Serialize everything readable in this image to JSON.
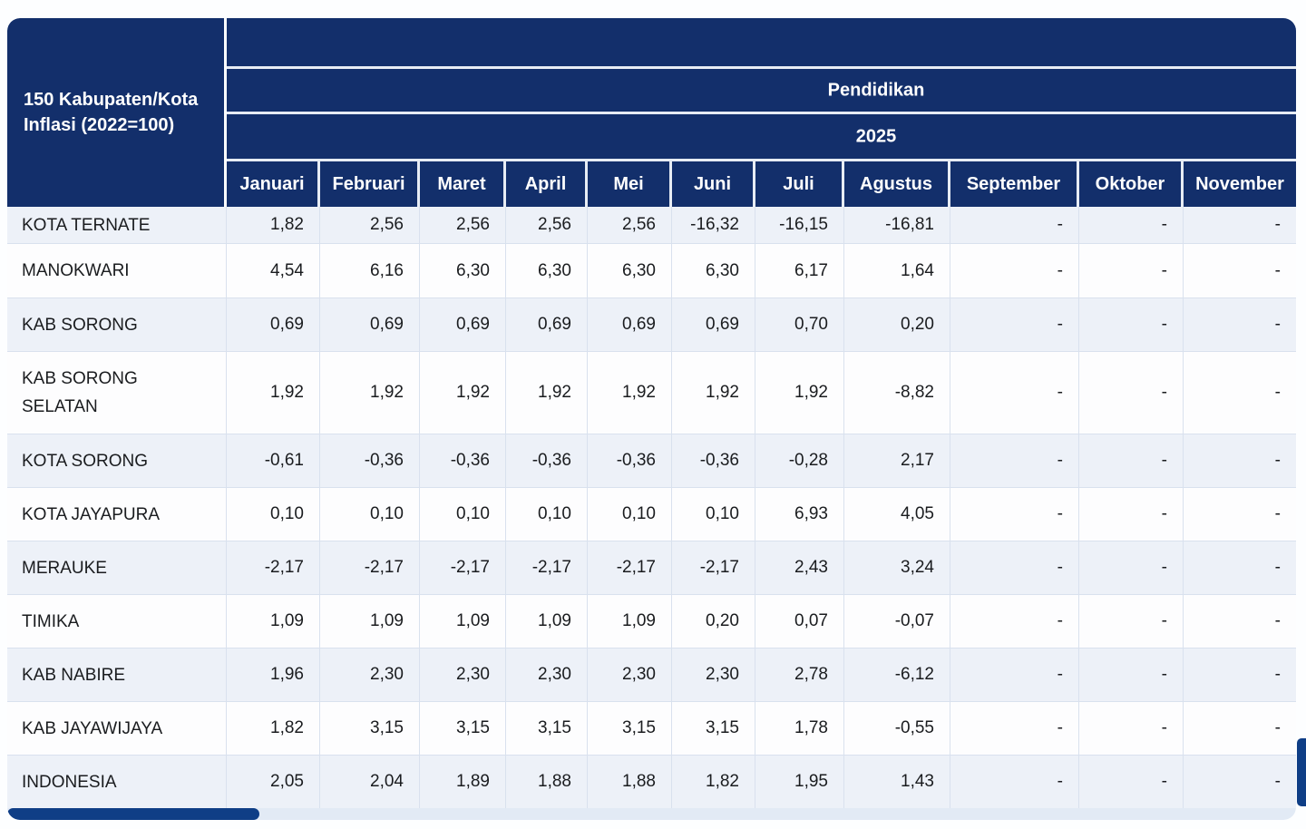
{
  "theme": {
    "header_navy": "#132F6B",
    "scrollbar_thumb": "#0F3E86",
    "alt_row_bg": "#EDF1F8",
    "white_row_bg": "#FDFDFE",
    "divider": "#D9E1EE",
    "header_text": "#FFFFFF",
    "body_text": "#1A1C1F"
  },
  "table": {
    "corner_title": "150 Kabupaten/Kota\nInflasi (2022=100)",
    "group_header": "Pendidikan",
    "year_header": "2025",
    "months": [
      "Januari",
      "Februari",
      "Maret",
      "April",
      "Mei",
      "Juni",
      "Juli",
      "Agustus",
      "September",
      "Oktober",
      "November"
    ],
    "rows": [
      {
        "name": "KOTA TERNATE",
        "values": [
          "1,82",
          "2,56",
          "2,56",
          "2,56",
          "2,56",
          "-16,32",
          "-16,15",
          "-16,81",
          "-",
          "-",
          "-"
        ]
      },
      {
        "name": "MANOKWARI",
        "values": [
          "4,54",
          "6,16",
          "6,30",
          "6,30",
          "6,30",
          "6,30",
          "6,17",
          "1,64",
          "-",
          "-",
          "-"
        ]
      },
      {
        "name": "KAB SORONG",
        "values": [
          "0,69",
          "0,69",
          "0,69",
          "0,69",
          "0,69",
          "0,69",
          "0,70",
          "0,20",
          "-",
          "-",
          "-"
        ]
      },
      {
        "name": "KAB SORONG\nSELATAN",
        "values": [
          "1,92",
          "1,92",
          "1,92",
          "1,92",
          "1,92",
          "1,92",
          "1,92",
          "-8,82",
          "-",
          "-",
          "-"
        ]
      },
      {
        "name": "KOTA SORONG",
        "values": [
          "-0,61",
          "-0,36",
          "-0,36",
          "-0,36",
          "-0,36",
          "-0,36",
          "-0,28",
          "2,17",
          "-",
          "-",
          "-"
        ]
      },
      {
        "name": "KOTA JAYAPURA",
        "values": [
          "0,10",
          "0,10",
          "0,10",
          "0,10",
          "0,10",
          "0,10",
          "6,93",
          "4,05",
          "-",
          "-",
          "-"
        ]
      },
      {
        "name": "MERAUKE",
        "values": [
          "-2,17",
          "-2,17",
          "-2,17",
          "-2,17",
          "-2,17",
          "-2,17",
          "2,43",
          "3,24",
          "-",
          "-",
          "-"
        ]
      },
      {
        "name": "TIMIKA",
        "values": [
          "1,09",
          "1,09",
          "1,09",
          "1,09",
          "1,09",
          "0,20",
          "0,07",
          "-0,07",
          "-",
          "-",
          "-"
        ]
      },
      {
        "name": "KAB NABIRE",
        "values": [
          "1,96",
          "2,30",
          "2,30",
          "2,30",
          "2,30",
          "2,30",
          "2,78",
          "-6,12",
          "-",
          "-",
          "-"
        ]
      },
      {
        "name": "KAB JAYAWIJAYA",
        "values": [
          "1,82",
          "3,15",
          "3,15",
          "3,15",
          "3,15",
          "3,15",
          "1,78",
          "-0,55",
          "-",
          "-",
          "-"
        ]
      },
      {
        "name": "INDONESIA",
        "values": [
          "2,05",
          "2,04",
          "1,89",
          "1,88",
          "1,88",
          "1,82",
          "1,95",
          "1,43",
          "-",
          "-",
          "-"
        ]
      }
    ]
  }
}
